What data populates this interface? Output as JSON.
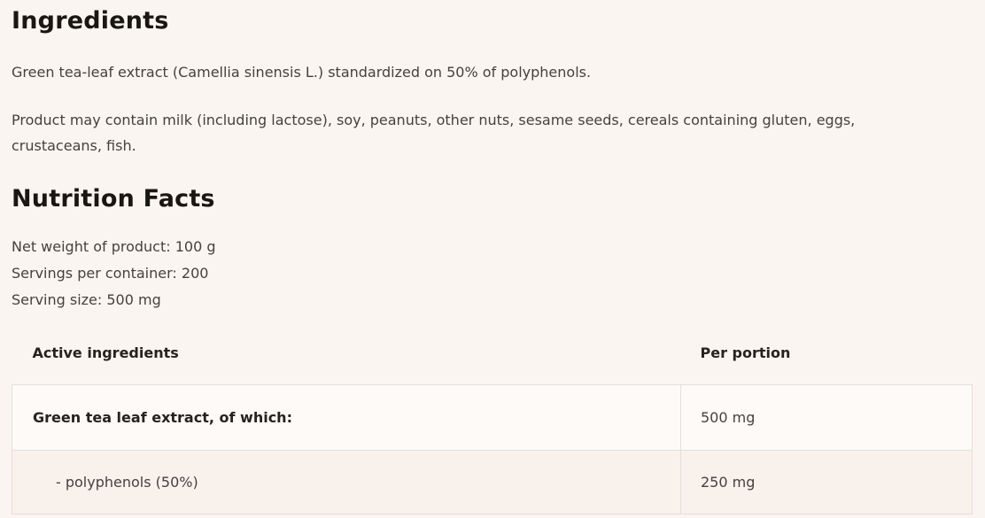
{
  "colors": {
    "page_background": "#fbf5f1",
    "row_main_background": "#fdfaf7",
    "row_sub_background": "#f8f1ec",
    "table_border": "#e4dfda",
    "heading_text": "#1a1614",
    "body_text": "#46413d"
  },
  "ingredients": {
    "heading": "Ingredients",
    "description": "Green tea-leaf extract (Camellia sinensis L.) standardized on 50% of polyphenols.",
    "allergen_notice": "Product may contain milk (including lactose), soy, peanuts, other nuts, sesame seeds, cereals containing gluten, eggs, crustaceans, fish."
  },
  "nutrition_facts": {
    "heading": "Nutrition Facts",
    "net_weight": "Net weight of product: 100 g",
    "servings_per_container": "Servings per container: 200",
    "serving_size": "Serving size: 500 mg",
    "table": {
      "columns": [
        "Active ingredients",
        "Per portion"
      ],
      "rows": [
        {
          "ingredient": "Green tea leaf extract, of which:",
          "per_portion": "500 mg"
        },
        {
          "ingredient": "- polyphenols (50%)",
          "per_portion": "250 mg"
        }
      ]
    }
  }
}
